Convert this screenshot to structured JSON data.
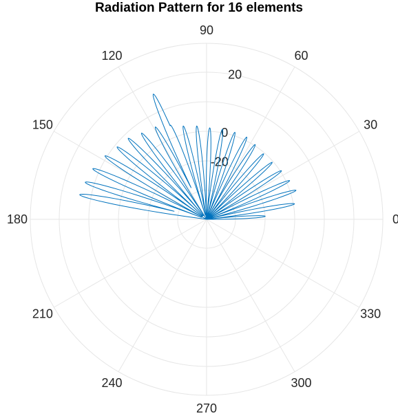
{
  "chart_data": {
    "type": "polar-line",
    "title": "Radiation Pattern for 16 elements",
    "theta_tick_labels": [
      "0",
      "30",
      "60",
      "90",
      "120",
      "150",
      "180",
      "210",
      "240",
      "270",
      "300",
      "330"
    ],
    "r_tick_labels": [
      "-20",
      "0",
      "20"
    ],
    "r_ticks": [
      -20,
      0,
      20
    ],
    "r_lim": [
      -40,
      35
    ],
    "grid": true,
    "theta_range_deg": [
      0,
      180
    ],
    "series": [
      {
        "color": "#0072BD",
        "pattern_model": "array factor magnitude (dB-like radius) over 0 to 180 degrees, 16 elements",
        "lobes": [
          {
            "peak_deg": 18,
            "peak_r": 0
          },
          {
            "peak_deg": 25,
            "peak_r": -1
          },
          {
            "peak_deg": 33,
            "peak_r": -2
          },
          {
            "peak_deg": 41,
            "peak_r": -3
          },
          {
            "peak_deg": 49,
            "peak_r": -3
          },
          {
            "peak_deg": 57,
            "peak_r": -2
          },
          {
            "peak_deg": 64,
            "peak_r": -1
          },
          {
            "peak_deg": 72,
            "peak_r": -1
          },
          {
            "peak_deg": 80,
            "peak_r": -1
          },
          {
            "peak_deg": 88,
            "peak_r": -1
          },
          {
            "peak_deg": 96,
            "peak_r": 0
          },
          {
            "peak_deg": 104,
            "peak_r": 1
          },
          {
            "peak_deg": 111,
            "peak_r": 3
          },
          {
            "peak_deg": 119,
            "peak_r": 5
          },
          {
            "peak_deg": 127,
            "peak_r": 6
          },
          {
            "peak_deg": 134,
            "peak_r": 8
          },
          {
            "peak_deg": 141,
            "peak_r": 9
          },
          {
            "peak_deg": 148,
            "peak_r": 11
          },
          {
            "peak_deg": 156,
            "peak_r": 13
          },
          {
            "peak_deg": 163,
            "peak_r": 14
          },
          {
            "peak_deg": 169,
            "peak_r": 15
          },
          {
            "peak_deg": 10,
            "peak_r": -2
          },
          {
            "peak_deg": 3,
            "peak_r": -15
          },
          {
            "peak_deg": 113,
            "peak_r": 18
          }
        ]
      }
    ]
  }
}
